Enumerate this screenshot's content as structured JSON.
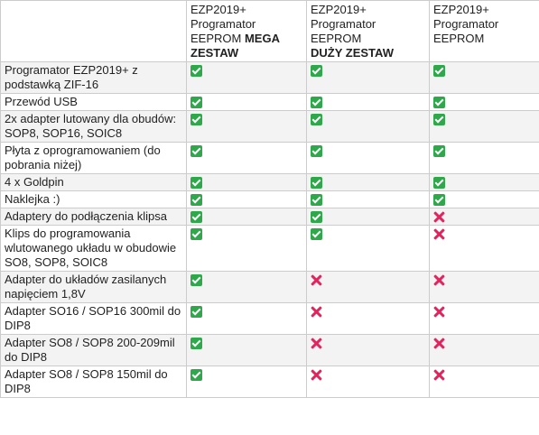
{
  "columns": [
    {
      "line1": "EZP2019+",
      "line2": "Programator",
      "line3_normal": "EEPROM",
      "line3_bold": "MEGA",
      "line4_bold": "ZESTAW"
    },
    {
      "line1": "EZP2019+",
      "line2": "Programator EEPROM",
      "line3_normal": "",
      "line3_bold": "DUŻY ZESTAW",
      "line4_bold": ""
    },
    {
      "line1": "EZP2019+",
      "line2": "Programator",
      "line3_normal": "EEPROM",
      "line3_bold": "",
      "line4_bold": ""
    }
  ],
  "marks": {
    "yes": "check-icon",
    "no": "cross-icon"
  },
  "colors": {
    "yes": "#2ea84b",
    "no": "#e0245e",
    "row_alt": "#f3f3f3",
    "border": "#cccccc"
  },
  "rows": [
    {
      "label": "Programator EZP2019+ z podstawką ZIF-16",
      "values": [
        "yes",
        "yes",
        "yes"
      ]
    },
    {
      "label": "Przewód USB",
      "values": [
        "yes",
        "yes",
        "yes"
      ]
    },
    {
      "label": "2x adapter lutowany dla obudów: SOP8, SOP16, SOIC8",
      "values": [
        "yes",
        "yes",
        "yes"
      ]
    },
    {
      "label": "Płyta z oprogramowaniem (do pobrania niżej)",
      "values": [
        "yes",
        "yes",
        "yes"
      ]
    },
    {
      "label": "4 x Goldpin",
      "values": [
        "yes",
        "yes",
        "yes"
      ]
    },
    {
      "label": "Naklejka :)",
      "values": [
        "yes",
        "yes",
        "yes"
      ]
    },
    {
      "label": "Adaptery do podłączenia klipsa",
      "values": [
        "yes",
        "yes",
        "no"
      ]
    },
    {
      "label": "Klips do programowania wlutowanego układu w obudowie SO8, SOP8, SOIC8",
      "values": [
        "yes",
        "yes",
        "no"
      ]
    },
    {
      "label": "Adapter do układów zasilanych napięciem 1,8V",
      "values": [
        "yes",
        "no",
        "no"
      ]
    },
    {
      "label": "Adapter SO16 / SOP16 300mil do DIP8",
      "values": [
        "yes",
        "no",
        "no"
      ]
    },
    {
      "label": "Adapter SO8 / SOP8 200-209mil do DIP8",
      "values": [
        "yes",
        "no",
        "no"
      ]
    },
    {
      "label": "Adapter SO8 / SOP8 150mil do DIP8",
      "values": [
        "yes",
        "no",
        "no"
      ]
    }
  ]
}
